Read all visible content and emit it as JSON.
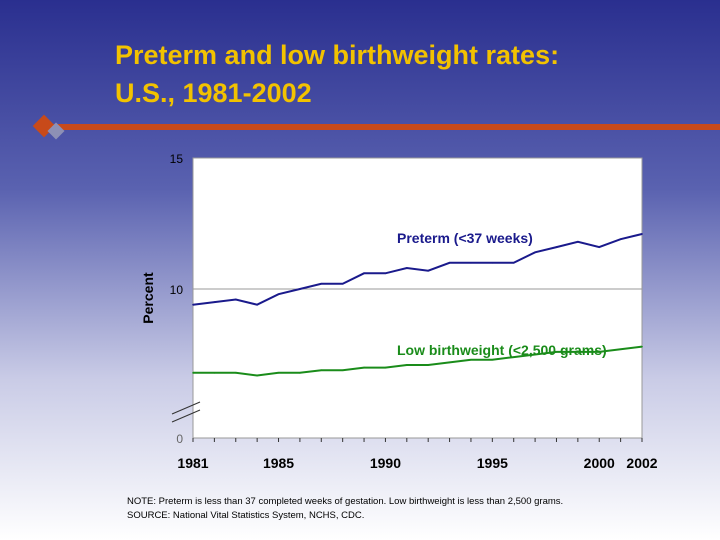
{
  "slide": {
    "title_line1": "Preterm and low birthweight rates:",
    "title_line2": "U.S., 1981-2002",
    "note": "NOTE: Preterm is less than 37 completed weeks of gestation.  Low birthweight is less than 2,500 grams.",
    "source": "SOURCE: National Vital Statistics System, NCHS, CDC.",
    "colors": {
      "title": "#f2c200",
      "accent_rule": "#c84a1a"
    }
  },
  "chart_data": {
    "type": "line",
    "ylabel": "Percent",
    "xlabel": "",
    "ylim": [
      0,
      15
    ],
    "axis_break": "between 0 and the lower plotted range",
    "y_ticks": [
      {
        "value": 0,
        "label": "0"
      },
      {
        "value": 10,
        "label": "10"
      },
      {
        "value": 15,
        "label": "15"
      }
    ],
    "x_tick_labels": [
      "1981",
      "1985",
      "1990",
      "1995",
      "2000",
      "2002"
    ],
    "x": [
      1981,
      1982,
      1983,
      1984,
      1985,
      1986,
      1987,
      1988,
      1989,
      1990,
      1991,
      1992,
      1993,
      1994,
      1995,
      1996,
      1997,
      1998,
      1999,
      2000,
      2001,
      2002
    ],
    "grid": "horizontal line at 10",
    "series": [
      {
        "name": "Preterm (<37 weeks)",
        "color": "#1a1a8c",
        "values": [
          9.4,
          9.5,
          9.6,
          9.4,
          9.8,
          10.0,
          10.2,
          10.2,
          10.6,
          10.6,
          10.8,
          10.7,
          11.0,
          11.0,
          11.0,
          11.0,
          11.4,
          11.6,
          11.8,
          11.6,
          11.9,
          12.1
        ]
      },
      {
        "name": "Low birthweight (<2,500 grams)",
        "color": "#1a8c1a",
        "values": [
          6.8,
          6.8,
          6.8,
          6.7,
          6.8,
          6.8,
          6.9,
          6.9,
          7.0,
          7.0,
          7.1,
          7.1,
          7.2,
          7.3,
          7.3,
          7.4,
          7.5,
          7.6,
          7.6,
          7.6,
          7.7,
          7.8
        ]
      }
    ]
  }
}
